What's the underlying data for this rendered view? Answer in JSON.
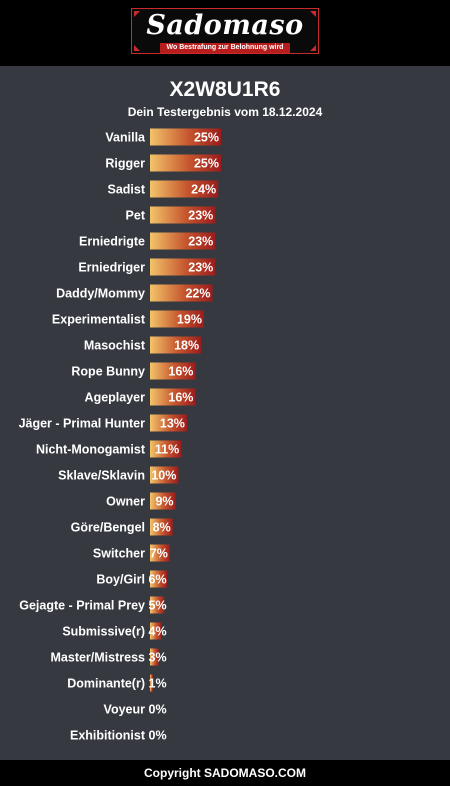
{
  "header": {
    "logo_text": "Sadomaso",
    "logo_tagline": "Wo Bestrafung zur Belohnung wird"
  },
  "result": {
    "code": "X2W8U1R6",
    "subtitle": "Dein Testergebnis vom 18.12.2024"
  },
  "chart_data": {
    "type": "bar",
    "orientation": "horizontal",
    "categories": [
      "Vanilla",
      "Rigger",
      "Sadist",
      "Pet",
      "Erniedrigte",
      "Erniedriger",
      "Daddy/Mommy",
      "Experimentalist",
      "Masochist",
      "Rope Bunny",
      "Ageplayer",
      "Jäger - Primal Hunter",
      "Nicht-Monogamist",
      "Sklave/Sklavin",
      "Owner",
      "Göre/Bengel",
      "Switcher",
      "Boy/Girl",
      "Gejagte - Primal Prey",
      "Submissive(r)",
      "Master/Mistress",
      "Dominante(r)",
      "Voyeur",
      "Exhibitionist"
    ],
    "values": [
      25,
      25,
      24,
      23,
      23,
      23,
      22,
      19,
      18,
      16,
      16,
      13,
      11,
      10,
      9,
      8,
      7,
      6,
      5,
      4,
      3,
      1,
      0,
      0
    ],
    "value_labels": [
      "25%",
      "25%",
      "24%",
      "23%",
      "23%",
      "23%",
      "22%",
      "19%",
      "18%",
      "16%",
      "16%",
      "13%",
      "11%",
      "10%",
      "9%",
      "8%",
      "7%",
      "6%",
      "5%",
      "4%",
      "3%",
      "1%",
      "0%",
      "0%"
    ],
    "unit": "%",
    "xlim": [
      0,
      100
    ],
    "colors": {
      "bar_start": "#f3c46a",
      "bar_mid": "#c5552e",
      "bar_end": "#9b1c1c",
      "label": "#ffffff"
    }
  },
  "footer": {
    "copyright": "Copyright SADOMASO.COM"
  }
}
